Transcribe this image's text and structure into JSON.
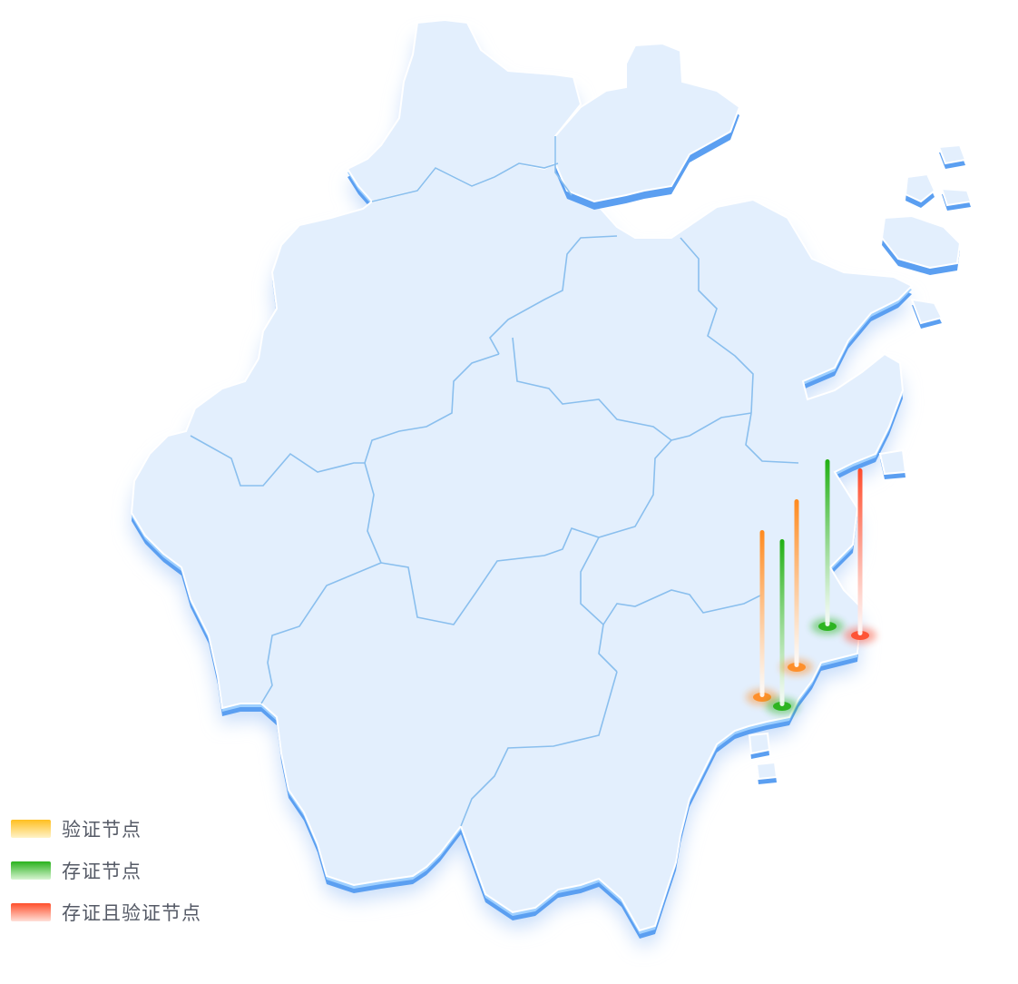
{
  "map": {
    "region": "zhejiang-province",
    "land_color": "#e2effd",
    "border_color": "#7db4ea",
    "edge_color": "#5aa0f2"
  },
  "legend": [
    {
      "label": "验证节点",
      "color": "#ffbf1f"
    },
    {
      "label": "存证节点",
      "color": "#29b21c"
    },
    {
      "label": "存证且验证节点",
      "color": "#ff4f2b"
    }
  ],
  "markers": [
    {
      "type": "verify",
      "color": "#ff8a1f"
    },
    {
      "type": "storage",
      "color": "#22b014"
    },
    {
      "type": "verify",
      "color": "#ff8a1f"
    },
    {
      "type": "storage",
      "color": "#22b014"
    },
    {
      "type": "storage-and-verify",
      "color": "#ff4a2a"
    }
  ]
}
